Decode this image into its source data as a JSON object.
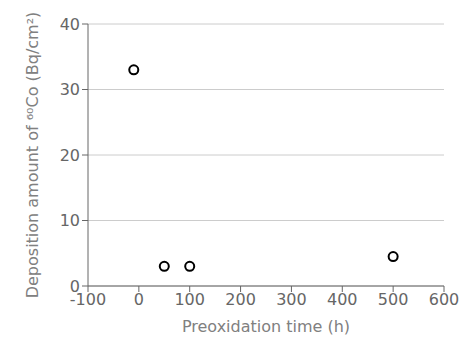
{
  "chart_data": {
    "type": "scatter",
    "x": [
      -10,
      50,
      100,
      500
    ],
    "values": [
      33,
      3,
      3,
      4.5
    ],
    "xlabel": "Preoxidation time (h)",
    "ylabel": "Deposition amount of ⁶⁰Co (Bq/cm²)",
    "xlim": [
      -100,
      600
    ],
    "ylim": [
      0,
      40
    ],
    "xticks": [
      -100,
      0,
      100,
      200,
      300,
      400,
      500,
      600
    ],
    "yticks": [
      0,
      10,
      20,
      30,
      40
    ],
    "grid": "y",
    "color": "#000000",
    "marker": "circle"
  }
}
